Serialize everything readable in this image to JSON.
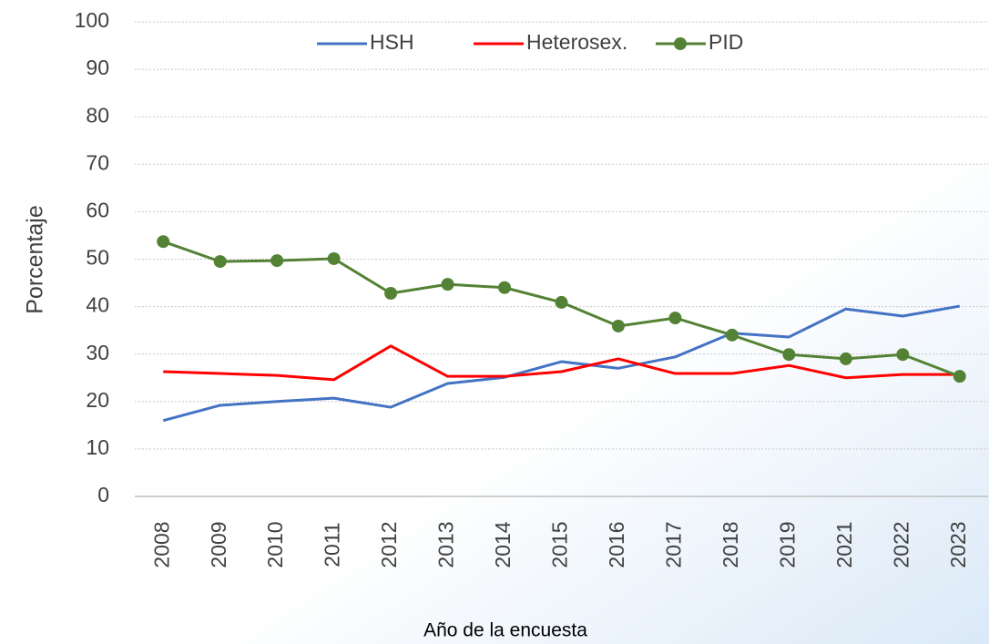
{
  "chart_data": {
    "type": "line",
    "x_label": "Año de la encuesta",
    "y_label": "Porcentaje",
    "categories": [
      "2008",
      "2009",
      "2010",
      "2011",
      "2012",
      "2013",
      "2014",
      "2015",
      "2016",
      "2017",
      "2018",
      "2019",
      "2021",
      "2022",
      "2023"
    ],
    "series": [
      {
        "name": "HSH",
        "color": "#4472c4",
        "marker": false,
        "values": [
          16,
          19.2,
          20,
          20.7,
          18.8,
          23.8,
          25.1,
          28.4,
          27,
          29.4,
          34.4,
          33.6,
          39.5,
          38,
          40.1
        ]
      },
      {
        "name": "Heterosex.",
        "color": "#ff0000",
        "marker": false,
        "values": [
          26.3,
          25.9,
          25.5,
          24.6,
          31.7,
          25.3,
          25.3,
          26.3,
          29,
          25.9,
          25.9,
          27.6,
          25,
          25.7,
          25.7
        ]
      },
      {
        "name": "PID",
        "color": "#548235",
        "marker": true,
        "values": [
          53.7,
          49.5,
          49.7,
          50.1,
          42.8,
          44.7,
          44,
          40.9,
          35.9,
          37.6,
          34,
          29.9,
          29,
          29.9,
          25.3
        ]
      }
    ],
    "ylim": [
      0,
      100
    ],
    "yticks": [
      0,
      10,
      20,
      30,
      40,
      50,
      60,
      70,
      80,
      90,
      100
    ],
    "grid": true,
    "legend": "top"
  }
}
